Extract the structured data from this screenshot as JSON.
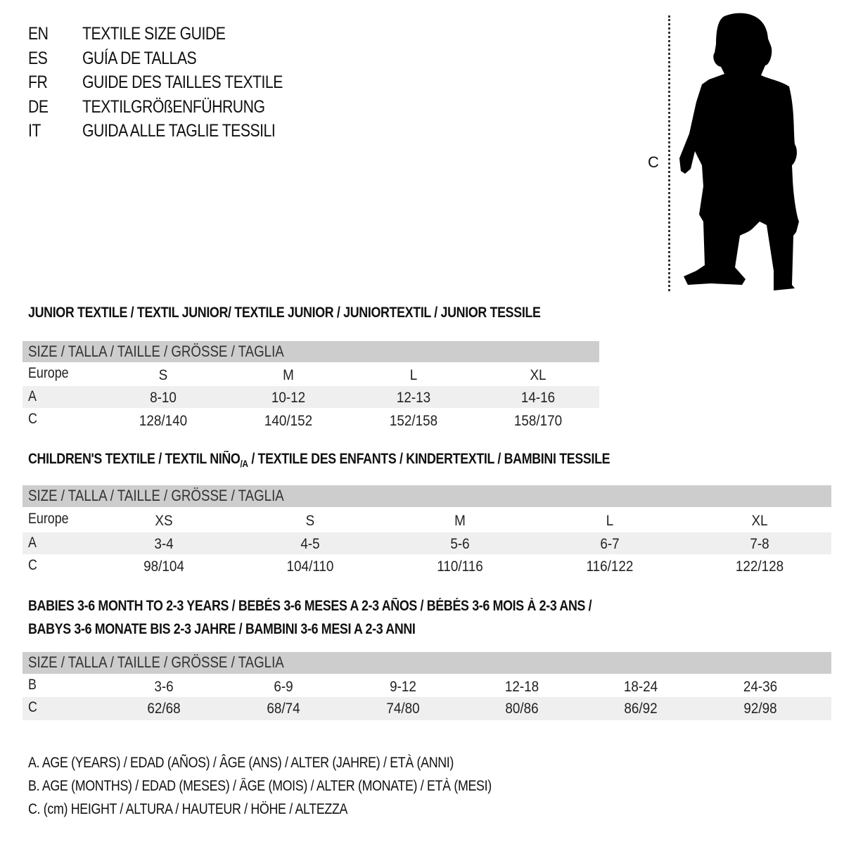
{
  "languages": [
    {
      "code": "EN",
      "title": "TEXTILE SIZE GUIDE"
    },
    {
      "code": "ES",
      "title": "GUÍA DE TALLAS"
    },
    {
      "code": "FR",
      "title": "GUIDE DES TAILLES TEXTILE"
    },
    {
      "code": "DE",
      "title": "TEXTILGRÖßENFÜHRUNG"
    },
    {
      "code": "IT",
      "title": "GUIDA ALLE TAGLIE TESSILI"
    }
  ],
  "figure": {
    "measure_label": "C",
    "icon": "child-silhouette"
  },
  "size_header": "SIZE / TALLA / TAILLE / GRÖSSE / TAGLIA",
  "junior": {
    "title": "JUNIOR TEXTILE / TEXTIL JUNIOR/ TEXTILE JUNIOR / JUNIORTEXTIL / JUNIOR TESSILE",
    "rows": [
      {
        "label": "Europe",
        "values": [
          "S",
          "M",
          "L",
          "XL"
        ]
      },
      {
        "label": "A",
        "values": [
          "8-10",
          "10-12",
          "12-13",
          "14-16"
        ]
      },
      {
        "label": "C",
        "values": [
          "128/140",
          "140/152",
          "152/158",
          "158/170"
        ]
      }
    ]
  },
  "children": {
    "title_a": "CHILDREN'S TEXTILE / TEXTIL NIÑO",
    "title_sub": "/A",
    "title_b": " / TEXTILE DES ENFANTS / KINDERTEXTIL / BAMBINI TESSILE",
    "rows": [
      {
        "label": "Europe",
        "values": [
          "XS",
          "S",
          "M",
          "L",
          "XL"
        ]
      },
      {
        "label": "A",
        "values": [
          "3-4",
          "4-5",
          "5-6",
          "6-7",
          "7-8"
        ]
      },
      {
        "label": "C",
        "values": [
          "98/104",
          "104/110",
          "110/116",
          "116/122",
          "122/128"
        ]
      }
    ]
  },
  "babies": {
    "title_line1": "BABIES 3-6 MONTH TO 2-3 YEARS / BEBÉS 3-6 MESES A 2-3 AÑOS / BÉBÉS 3-6 MOIS À 2-3 ANS /",
    "title_line2": "BABYS 3-6 MONATE BIS 2-3 JAHRE / BAMBINI 3-6 MESI A 2-3 ANNI",
    "rows": [
      {
        "label": "B",
        "values": [
          "3-6",
          "6-9",
          "9-12",
          "12-18",
          "18-24",
          "24-36"
        ]
      },
      {
        "label": "C",
        "values": [
          "62/68",
          "68/74",
          "74/80",
          "80/86",
          "86/92",
          "92/98"
        ]
      }
    ]
  },
  "legend": [
    "A. AGE (YEARS) / EDAD (AÑOS) / ÂGE (ANS) / ALTER (JAHRE) / ETÀ (ANNI)",
    "B. AGE (MONTHS) / EDAD (MESES) / ÂGE (MOIS) / ALTER (MONATE) / ETÀ (MESI)",
    "C. (cm) HEIGHT / ALTURA / HAUTEUR / HÖHE / ALTEZZA"
  ],
  "colors": {
    "header_band": "#cdcdcd",
    "alt_band": "#efefef",
    "text": "#111111"
  }
}
